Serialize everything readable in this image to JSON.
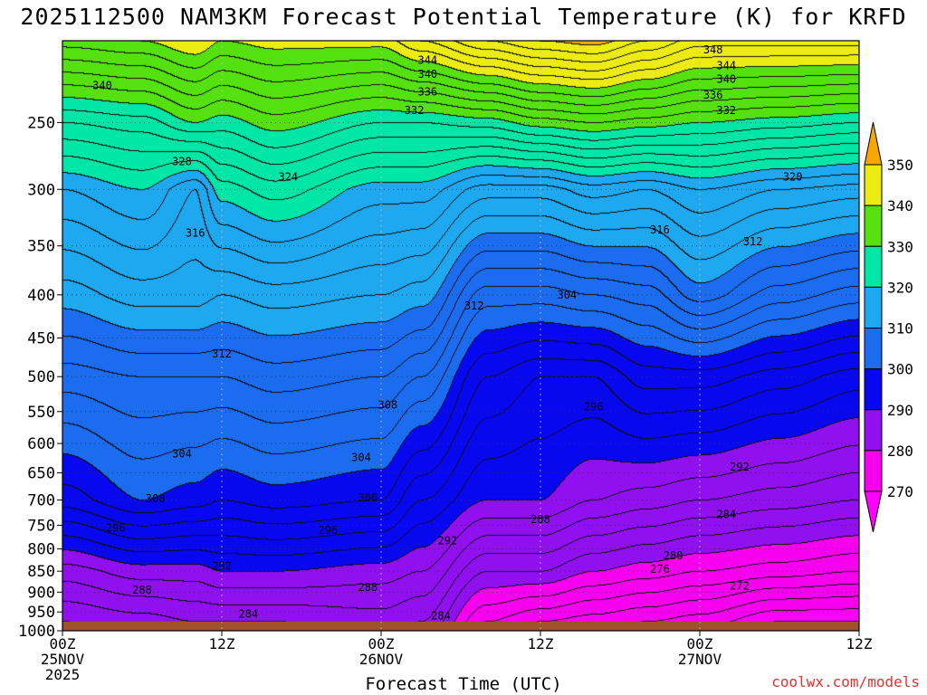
{
  "chart_data": {
    "type": "contour",
    "title": "2025112500 NAM3KM Forecast Potential Temperature (K) for KRFD",
    "xlabel": "Forecast Time (UTC)",
    "ylabel": "",
    "credit": "coolwx.com/models",
    "x_axis": {
      "range_hours": [
        0,
        60
      ],
      "ticks": [
        {
          "hour": 0,
          "label": "00Z",
          "sub1": "25NOV",
          "sub2": "2025"
        },
        {
          "hour": 12,
          "label": "12Z",
          "sub1": "",
          "sub2": ""
        },
        {
          "hour": 24,
          "label": "00Z",
          "sub1": "26NOV",
          "sub2": ""
        },
        {
          "hour": 36,
          "label": "12Z",
          "sub1": "",
          "sub2": ""
        },
        {
          "hour": 48,
          "label": "00Z",
          "sub1": "27NOV",
          "sub2": ""
        },
        {
          "hour": 60,
          "label": "12Z",
          "sub1": "",
          "sub2": ""
        }
      ]
    },
    "y_axis": {
      "scale": "log",
      "unit": "hPa",
      "range": [
        1000,
        200
      ],
      "ticks": [
        250,
        300,
        350,
        400,
        450,
        500,
        550,
        600,
        650,
        700,
        750,
        800,
        850,
        900,
        950,
        1000
      ],
      "grid": true
    },
    "colorbar": {
      "labels": [
        "350",
        "340",
        "330",
        "320",
        "310",
        "300",
        "290",
        "280",
        "270"
      ],
      "bands": [
        {
          "from": 270,
          "to": 280,
          "color": "#f700ef"
        },
        {
          "from": 280,
          "to": 290,
          "color": "#9010f0"
        },
        {
          "from": 290,
          "to": 300,
          "color": "#0808f0"
        },
        {
          "from": 300,
          "to": 310,
          "color": "#1c6cf0"
        },
        {
          "from": 310,
          "to": 320,
          "color": "#1ea8f0"
        },
        {
          "from": 320,
          "to": 330,
          "color": "#00e6a6"
        },
        {
          "from": 330,
          "to": 340,
          "color": "#55e010"
        },
        {
          "from": 340,
          "to": 350,
          "color": "#ecec14"
        },
        {
          "from": 350,
          "to": 360,
          "color": "#f7a800"
        }
      ],
      "below_color": "#ff00ff",
      "above_color": "#f7a800"
    },
    "ground_color": "#a0522d",
    "contour_interval_K": 2,
    "theta_profiles": [
      {
        "hour": 0,
        "p": [
          975,
          850,
          700,
          500,
          400,
          300,
          250,
          200
        ],
        "theta": [
          282,
          287,
          297,
          305,
          311,
          318,
          326,
          339
        ]
      },
      {
        "hour": 6,
        "p": [
          975,
          850,
          700,
          500,
          400,
          300,
          250,
          200
        ],
        "theta": [
          283,
          289,
          300,
          306,
          313,
          320,
          327,
          340
        ]
      },
      {
        "hour": 10,
        "p": [
          975,
          850,
          700,
          500,
          400,
          300,
          250,
          200
        ],
        "theta": [
          284,
          289,
          299,
          306,
          313,
          316,
          330,
          342
        ]
      },
      {
        "hour": 12,
        "p": [
          975,
          850,
          700,
          500,
          400,
          300,
          250,
          200
        ],
        "theta": [
          284,
          290,
          298,
          306,
          312,
          321,
          329,
          340
        ]
      },
      {
        "hour": 16,
        "p": [
          975,
          850,
          700,
          500,
          400,
          300,
          250,
          200
        ],
        "theta": [
          284,
          290,
          299,
          307,
          313,
          323,
          331,
          341
        ]
      },
      {
        "hour": 24,
        "p": [
          975,
          850,
          700,
          500,
          400,
          300,
          250,
          200
        ],
        "theta": [
          285,
          289,
          298,
          306,
          312,
          319,
          328,
          341
        ]
      },
      {
        "hour": 27,
        "p": [
          975,
          850,
          700,
          500,
          400,
          300,
          250,
          200
        ],
        "theta": [
          284,
          288,
          294,
          304,
          311,
          319,
          328,
          344
        ]
      },
      {
        "hour": 32,
        "p": [
          975,
          850,
          700,
          500,
          400,
          300,
          250,
          200
        ],
        "theta": [
          276,
          282,
          290,
          296,
          303,
          315,
          329,
          348
        ]
      },
      {
        "hour": 36,
        "p": [
          975,
          850,
          700,
          500,
          400,
          300,
          250,
          200
        ],
        "theta": [
          274,
          282,
          290,
          294,
          303,
          315,
          331,
          350
        ]
      },
      {
        "hour": 40,
        "p": [
          975,
          850,
          700,
          500,
          400,
          300,
          250,
          200
        ],
        "theta": [
          273,
          280,
          288,
          294,
          304,
          317,
          332,
          351
        ]
      },
      {
        "hour": 44,
        "p": [
          975,
          850,
          700,
          500,
          400,
          300,
          250,
          200
        ],
        "theta": [
          272,
          279,
          287,
          297,
          305,
          316,
          331,
          348
        ]
      },
      {
        "hour": 48,
        "p": [
          975,
          850,
          700,
          500,
          400,
          300,
          250,
          200
        ],
        "theta": [
          271,
          278,
          286,
          297,
          309,
          318,
          330,
          345
        ]
      },
      {
        "hour": 54,
        "p": [
          975,
          850,
          700,
          500,
          400,
          300,
          250,
          200
        ],
        "theta": [
          268,
          277,
          285,
          295,
          305,
          316,
          329,
          345
        ]
      },
      {
        "hour": 60,
        "p": [
          975,
          850,
          700,
          500,
          400,
          300,
          250,
          200
        ],
        "theta": [
          268,
          276,
          284,
          293,
          303,
          315,
          328,
          345
        ]
      }
    ],
    "contour_labels": [
      {
        "text": "344",
        "hour": 27.5,
        "p": 211
      },
      {
        "text": "340",
        "hour": 27.5,
        "p": 219
      },
      {
        "text": "336",
        "hour": 27.5,
        "p": 230
      },
      {
        "text": "332",
        "hour": 26.5,
        "p": 242
      },
      {
        "text": "340",
        "hour": 3,
        "p": 226
      },
      {
        "text": "328",
        "hour": 9,
        "p": 278
      },
      {
        "text": "324",
        "hour": 17,
        "p": 290
      },
      {
        "text": "316",
        "hour": 10,
        "p": 338
      },
      {
        "text": "312",
        "hour": 12,
        "p": 470
      },
      {
        "text": "308",
        "hour": 24.5,
        "p": 540
      },
      {
        "text": "304",
        "hour": 9,
        "p": 617
      },
      {
        "text": "304",
        "hour": 22.5,
        "p": 623
      },
      {
        "text": "300",
        "hour": 7,
        "p": 697
      },
      {
        "text": "300",
        "hour": 23,
        "p": 696
      },
      {
        "text": "296",
        "hour": 4,
        "p": 756
      },
      {
        "text": "296",
        "hour": 20,
        "p": 760
      },
      {
        "text": "292",
        "hour": 12,
        "p": 838
      },
      {
        "text": "292",
        "hour": 29,
        "p": 782
      },
      {
        "text": "288",
        "hour": 6,
        "p": 895
      },
      {
        "text": "288",
        "hour": 23,
        "p": 888
      },
      {
        "text": "288",
        "hour": 36,
        "p": 738
      },
      {
        "text": "284",
        "hour": 14,
        "p": 955
      },
      {
        "text": "284",
        "hour": 28.5,
        "p": 960
      },
      {
        "text": "284",
        "hour": 50,
        "p": 728
      },
      {
        "text": "280",
        "hour": 46,
        "p": 815
      },
      {
        "text": "276",
        "hour": 45,
        "p": 845
      },
      {
        "text": "272",
        "hour": 51,
        "p": 885
      },
      {
        "text": "296",
        "hour": 40,
        "p": 543
      },
      {
        "text": "292",
        "hour": 51,
        "p": 640
      },
      {
        "text": "304",
        "hour": 38,
        "p": 400
      },
      {
        "text": "312",
        "hour": 31,
        "p": 412
      },
      {
        "text": "316",
        "hour": 45,
        "p": 335
      },
      {
        "text": "312",
        "hour": 52,
        "p": 346
      },
      {
        "text": "320",
        "hour": 55,
        "p": 290
      },
      {
        "text": "348",
        "hour": 49,
        "p": 205
      },
      {
        "text": "344",
        "hour": 50,
        "p": 214
      },
      {
        "text": "340",
        "hour": 50,
        "p": 222
      },
      {
        "text": "336",
        "hour": 49,
        "p": 232
      },
      {
        "text": "332",
        "hour": 50,
        "p": 242
      }
    ]
  }
}
